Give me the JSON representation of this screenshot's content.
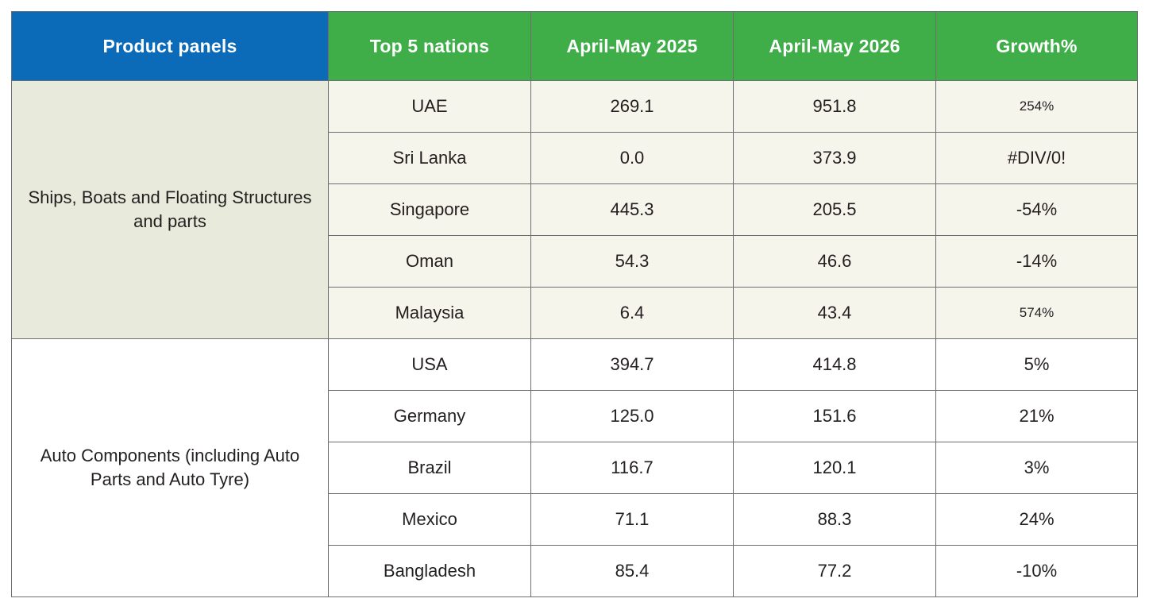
{
  "table": {
    "headers": [
      "Product panels",
      "Top 5 nations",
      "April-May 2025",
      "April-May 2026",
      "Growth%"
    ],
    "colors": {
      "header_product_bg": "#0b6bb8",
      "header_bg": "#3fae49",
      "group1_bg": "#f5f5ec",
      "group1_product_bg": "#e8eadb",
      "group2_bg": "#ffffff"
    },
    "groups": [
      {
        "product": "Ships, Boats and Floating Structures and parts",
        "rows": [
          {
            "nation": "UAE",
            "v2025": "269.1",
            "v2026": "951.8",
            "growth": "254%"
          },
          {
            "nation": "Sri Lanka",
            "v2025": "0.0",
            "v2026": "373.9",
            "growth": "#DIV/0!"
          },
          {
            "nation": "Singapore",
            "v2025": "445.3",
            "v2026": "205.5",
            "growth": "-54%"
          },
          {
            "nation": "Oman",
            "v2025": "54.3",
            "v2026": "46.6",
            "growth": "-14%"
          },
          {
            "nation": "Malaysia",
            "v2025": "6.4",
            "v2026": "43.4",
            "growth": "574%"
          }
        ]
      },
      {
        "product": "Auto Components (including Auto Parts and Auto Tyre)",
        "rows": [
          {
            "nation": "USA",
            "v2025": "394.7",
            "v2026": "414.8",
            "growth": "5%"
          },
          {
            "nation": "Germany",
            "v2025": "125.0",
            "v2026": "151.6",
            "growth": "21%"
          },
          {
            "nation": "Brazil",
            "v2025": "116.7",
            "v2026": "120.1",
            "growth": "3%"
          },
          {
            "nation": "Mexico",
            "v2025": "71.1",
            "v2026": "88.3",
            "growth": "24%"
          },
          {
            "nation": "Bangladesh",
            "v2025": "85.4",
            "v2026": "77.2",
            "growth": "-10%"
          }
        ]
      }
    ]
  }
}
